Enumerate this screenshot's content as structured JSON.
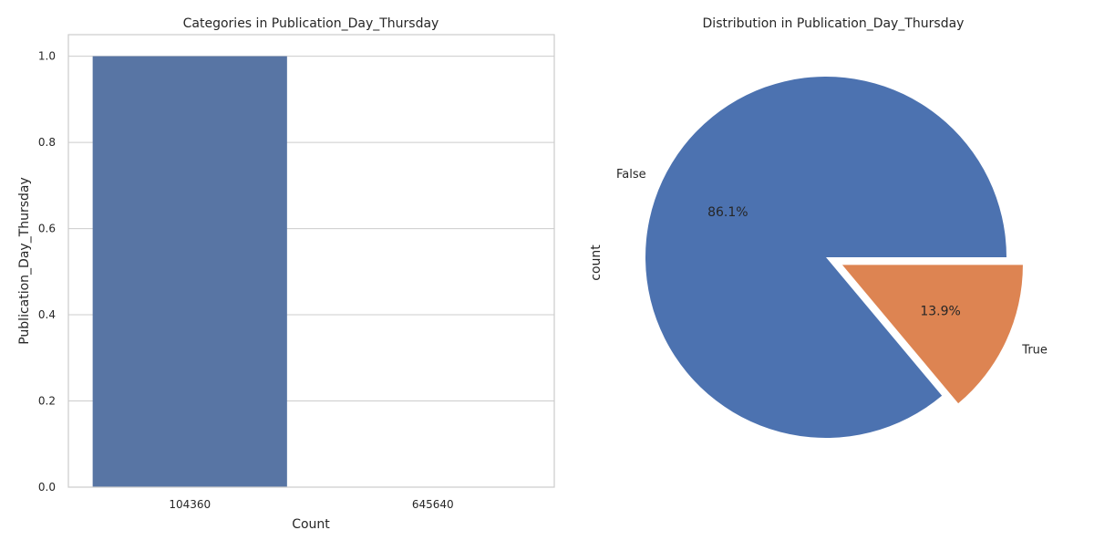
{
  "chart_data": [
    {
      "type": "bar",
      "title": "Categories in Publication_Day_Thursday",
      "xlabel": "Count",
      "ylabel": "Publication_Day_Thursday",
      "categories": [
        "104360",
        "645640"
      ],
      "values": [
        1.0,
        0.0
      ],
      "ylim": [
        0,
        1.05
      ],
      "yticks": [
        "0.0",
        "0.2",
        "0.4",
        "0.6",
        "0.8",
        "1.0"
      ],
      "grid": true,
      "colors": [
        "#5875a4"
      ]
    },
    {
      "type": "pie",
      "title": "Distribution in Publication_Day_Thursday",
      "ylabel": "count",
      "labels": [
        "False",
        "True"
      ],
      "percentages": [
        "86.1%",
        "13.9%"
      ],
      "values": [
        86.1,
        13.9
      ],
      "explode": [
        0,
        0.1
      ],
      "colors": [
        "#4c72b0",
        "#dd8452"
      ]
    }
  ]
}
